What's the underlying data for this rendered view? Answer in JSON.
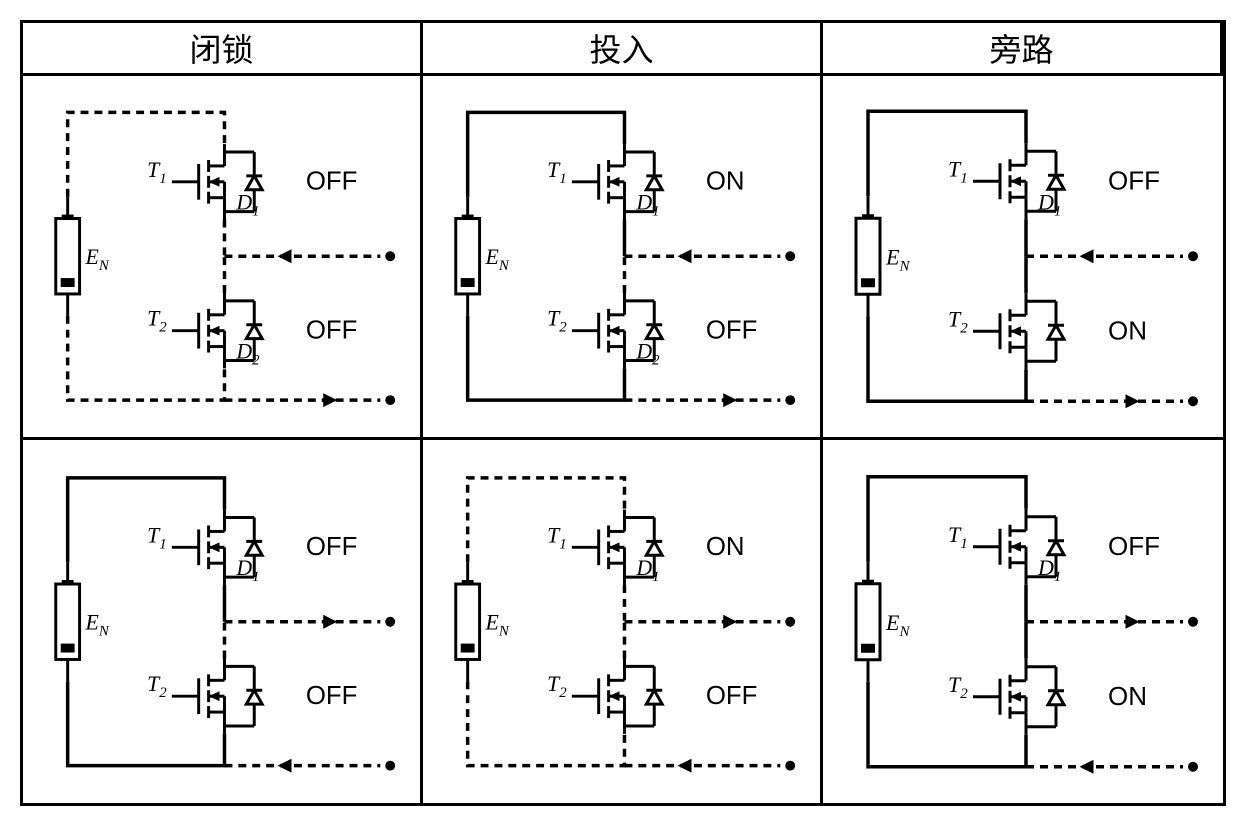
{
  "headers": [
    "闭锁",
    "投入",
    "旁路"
  ],
  "labels": {
    "T1": "T",
    "T1_sub": "1",
    "T2": "T",
    "T2_sub": "2",
    "D1": "D",
    "D1_sub": "1",
    "D2": "D",
    "D2_sub": "2",
    "EN": "E",
    "EN_sub": "N",
    "ON": "ON",
    "OFF": "OFF"
  },
  "colors": {
    "stroke": "#000000",
    "background": "#ffffff"
  },
  "stroke_width": 3.5,
  "dash_pattern": "8 6",
  "cells": [
    {
      "row": 0,
      "col": 0,
      "T1": "OFF",
      "T2": "OFF",
      "arrow_dir": "in",
      "loop_active": false,
      "T2_active": false,
      "D1_show": true,
      "D2_show": true
    },
    {
      "row": 0,
      "col": 1,
      "T1": "ON",
      "T2": "OFF",
      "arrow_dir": "in",
      "loop_active": true,
      "T2_active": false,
      "D1_show": true,
      "D2_show": true
    },
    {
      "row": 0,
      "col": 2,
      "T1": "OFF",
      "T2": "ON",
      "arrow_dir": "in",
      "loop_active": true,
      "T2_active": true,
      "D1_show": true,
      "D2_show": false
    },
    {
      "row": 1,
      "col": 0,
      "T1": "OFF",
      "T2": "OFF",
      "arrow_dir": "out",
      "loop_active": true,
      "T2_active": false,
      "D1_show": true,
      "D2_show": false
    },
    {
      "row": 1,
      "col": 1,
      "T1": "ON",
      "T2": "OFF",
      "arrow_dir": "out",
      "loop_active": false,
      "T2_active": false,
      "D1_show": true,
      "D2_show": false
    },
    {
      "row": 1,
      "col": 2,
      "T1": "OFF",
      "T2": "ON",
      "arrow_dir": "out",
      "loop_active": true,
      "T2_active": true,
      "D1_show": true,
      "D2_show": false
    }
  ]
}
